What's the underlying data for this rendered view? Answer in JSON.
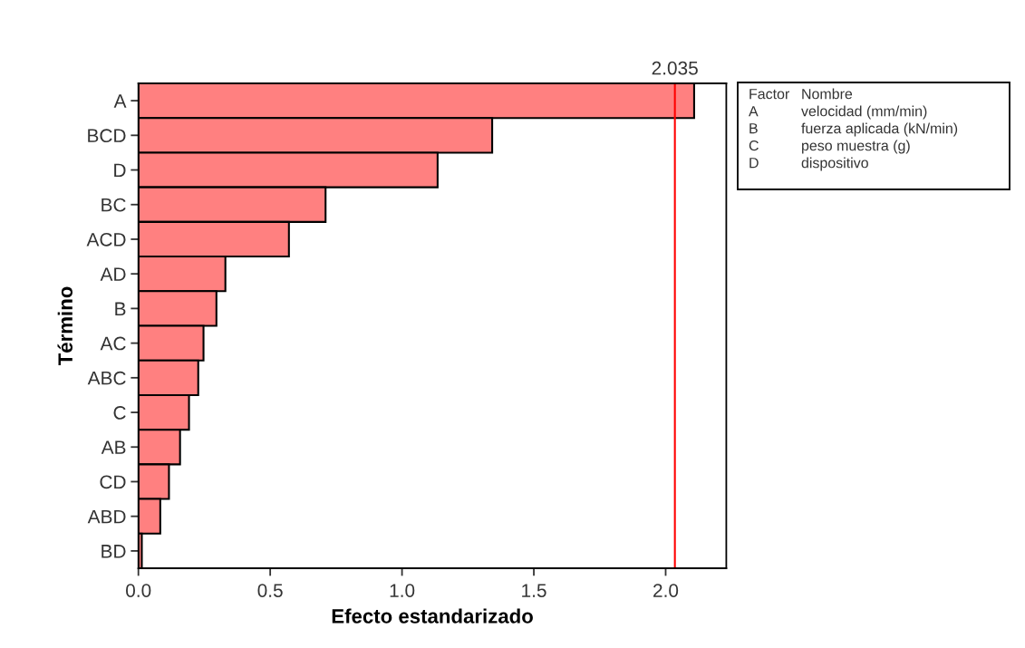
{
  "chart_data": {
    "type": "bar",
    "orientation": "horizontal",
    "xlabel": "Efecto estandarizado",
    "ylabel": "Término",
    "categories": [
      "A",
      "BCD",
      "D",
      "BC",
      "ACD",
      "AD",
      "B",
      "AC",
      "ABC",
      "C",
      "AB",
      "CD",
      "ABD",
      "BD"
    ],
    "values": [
      2.108,
      1.342,
      1.135,
      0.71,
      0.571,
      0.33,
      0.296,
      0.247,
      0.227,
      0.192,
      0.158,
      0.116,
      0.083,
      0.013
    ],
    "color": "#ff8080",
    "xlim": [
      0,
      2.23
    ],
    "xticks": [
      {
        "value": 0,
        "label": "0.0"
      },
      {
        "value": 0.5,
        "label": "0.5"
      },
      {
        "value": 1,
        "label": "1.0"
      },
      {
        "value": 1.5,
        "label": "1.5"
      },
      {
        "value": 2,
        "label": "2.0"
      }
    ],
    "ref_lines": [
      {
        "axis": "x",
        "value": 2.035,
        "label": "2.035",
        "color": "#ff0000"
      }
    ],
    "annotations": [
      "Factor",
      "Nombre",
      "A",
      "velocidad (mm/min)",
      "B",
      "fuerza aplicada (kN/min)",
      "C",
      "peso muestra (g)",
      "D",
      "dispositivo"
    ],
    "grid": false
  }
}
